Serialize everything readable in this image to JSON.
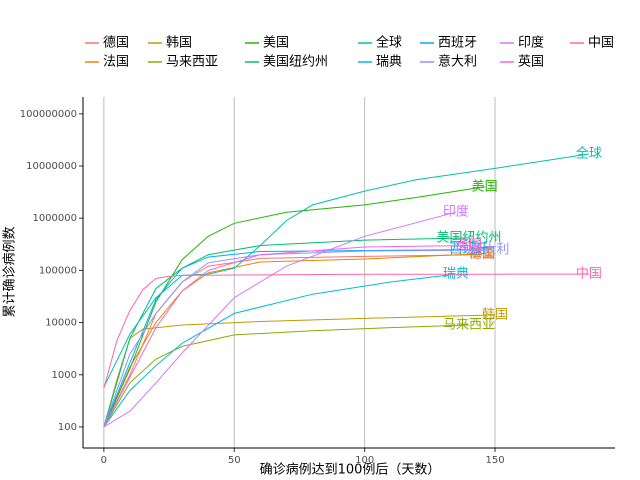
{
  "chart_data": {
    "type": "line",
    "xlabel": "确诊病例达到100例后（天数）",
    "ylabel": "累计确诊病例数",
    "xlim": [
      -8,
      196
    ],
    "ylim": [
      39.5,
      210000000
    ],
    "ylog": true,
    "grid": "x",
    "xticks": [
      0,
      50,
      100,
      150
    ],
    "yticks": [
      100,
      1000,
      10000,
      100000,
      1000000,
      10000000,
      100000000
    ],
    "legend_position": "top",
    "series": [
      {
        "name": "德国",
        "color": "#F8766D",
        "x": [
          0,
          10,
          20,
          30,
          40,
          60,
          100,
          145
        ],
        "values": [
          100,
          1000,
          15000,
          60000,
          120000,
          170000,
          185000,
          200000
        ]
      },
      {
        "name": "法国",
        "color": "#E18A00",
        "x": [
          0,
          10,
          20,
          30,
          40,
          60,
          100,
          145
        ],
        "values": [
          100,
          1400,
          10000,
          40000,
          90000,
          145000,
          165000,
          210000
        ]
      },
      {
        "name": "韩国",
        "color": "#BE9C00",
        "x": [
          0,
          5,
          10,
          15,
          30,
          60,
          100,
          150
        ],
        "values": [
          100,
          800,
          5000,
          7500,
          9000,
          10500,
          12000,
          14000
        ]
      },
      {
        "name": "马来西亚",
        "color": "#8CAB00",
        "x": [
          0,
          10,
          20,
          30,
          50,
          80,
          110,
          140
        ],
        "values": [
          100,
          700,
          2000,
          3500,
          5800,
          7000,
          8000,
          9000
        ]
      },
      {
        "name": "美国",
        "color": "#24B700",
        "x": [
          0,
          10,
          20,
          30,
          40,
          50,
          70,
          100,
          120,
          146
        ],
        "values": [
          100,
          1300,
          25000,
          160000,
          450000,
          800000,
          1300000,
          1800000,
          2500000,
          4000000
        ]
      },
      {
        "name": "美国纽约州",
        "color": "#00BE70",
        "x": [
          0,
          10,
          20,
          30,
          40,
          60,
          100,
          140
        ],
        "values": [
          100,
          5000,
          45000,
          110000,
          200000,
          300000,
          380000,
          420000
        ]
      },
      {
        "name": "全球",
        "color": "#00C1AB",
        "x": [
          0,
          10,
          20,
          30,
          40,
          50,
          60,
          70,
          80,
          100,
          120,
          150,
          186
        ],
        "values": [
          580,
          6000,
          30000,
          80000,
          85000,
          110000,
          300000,
          900000,
          1800000,
          3300000,
          5500000,
          9000000,
          17000000
        ]
      },
      {
        "name": "瑞典",
        "color": "#00BBDA",
        "x": [
          0,
          10,
          20,
          30,
          50,
          80,
          110,
          135
        ],
        "values": [
          100,
          500,
          1500,
          4000,
          15000,
          35000,
          60000,
          85000
        ]
      },
      {
        "name": "西班牙",
        "color": "#00ACFC",
        "x": [
          0,
          10,
          20,
          30,
          40,
          60,
          100,
          140
        ],
        "values": [
          100,
          1700,
          28000,
          110000,
          180000,
          230000,
          240000,
          250000
        ]
      },
      {
        "name": "意大利",
        "color": "#8B93FF",
        "x": [
          0,
          10,
          20,
          30,
          40,
          60,
          100,
          148
        ],
        "values": [
          100,
          2500,
          15000,
          60000,
          140000,
          200000,
          235000,
          245000
        ]
      },
      {
        "name": "印度",
        "color": "#D575FE",
        "x": [
          0,
          10,
          20,
          30,
          50,
          70,
          100,
          135
        ],
        "values": [
          100,
          200,
          700,
          2600,
          30000,
          120000,
          450000,
          1300000
        ]
      },
      {
        "name": "英国",
        "color": "#F962DD",
        "x": [
          0,
          10,
          20,
          30,
          40,
          60,
          100,
          140
        ],
        "values": [
          100,
          900,
          8000,
          40000,
          100000,
          200000,
          280000,
          300000
        ]
      },
      {
        "name": "中国",
        "color": "#FF65AC",
        "x": [
          0,
          5,
          10,
          15,
          20,
          25,
          30,
          60,
          100,
          150,
          186
        ],
        "values": [
          550,
          4500,
          17000,
          43000,
          70000,
          77000,
          80000,
          82000,
          84000,
          84500,
          85000
        ]
      }
    ]
  }
}
